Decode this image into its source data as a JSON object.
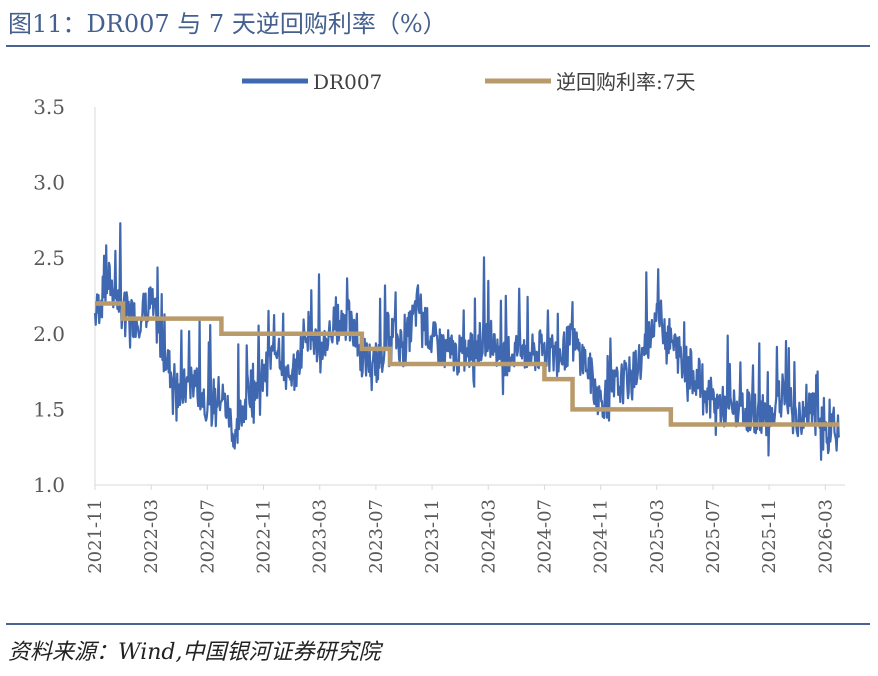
{
  "header": {
    "title": "图11：DR007 与 7 天逆回购利率（%）"
  },
  "footer": {
    "source": "资料来源：Wind,中国银河证券研究院"
  },
  "chart_data": {
    "type": "line",
    "ylim": [
      1.0,
      3.5
    ],
    "yticks": [
      "1.0",
      "1.5",
      "2.0",
      "2.5",
      "3.0",
      "3.5"
    ],
    "xticks": [
      "2021-11",
      "2022-03",
      "2022-07",
      "2022-11",
      "2023-03",
      "2023-07",
      "2023-11",
      "2024-03",
      "2024-07",
      "2024-11",
      "2025-03",
      "2025-07",
      "2025-11",
      "2026-03"
    ],
    "legend_position": "top",
    "grid": false,
    "series": [
      {
        "name": "DR007",
        "color": "#4068b0",
        "x": [
          "2021-11",
          "2021-12",
          "2022-01",
          "2022-02",
          "2022-03",
          "2022-04",
          "2022-05",
          "2022-06",
          "2022-07",
          "2022-08",
          "2022-09",
          "2022-10",
          "2022-11",
          "2022-12",
          "2023-01",
          "2023-02",
          "2023-03",
          "2023-04",
          "2023-05",
          "2023-06",
          "2023-07",
          "2023-08",
          "2023-09",
          "2023-10",
          "2023-11",
          "2023-12",
          "2024-01",
          "2024-02",
          "2024-03",
          "2024-04",
          "2024-05",
          "2024-06",
          "2024-07",
          "2024-08",
          "2024-09",
          "2024-10",
          "2024-11",
          "2024-12",
          "2025-01",
          "2025-02",
          "2025-03",
          "2025-04",
          "2025-05",
          "2025-06",
          "2025-07",
          "2025-08",
          "2025-09",
          "2025-10",
          "2025-11",
          "2025-12",
          "2026-01",
          "2026-02",
          "2026-03",
          "2026-04"
        ],
        "y": [
          2.12,
          2.35,
          2.15,
          2.1,
          2.2,
          1.85,
          1.6,
          1.7,
          1.55,
          1.6,
          1.35,
          1.65,
          1.7,
          1.95,
          1.6,
          2.05,
          1.9,
          2.05,
          2.1,
          1.85,
          1.8,
          2.05,
          1.9,
          2.2,
          1.95,
          1.9,
          1.85,
          1.9,
          2.0,
          1.85,
          1.9,
          1.85,
          1.9,
          1.85,
          1.95,
          1.8,
          1.55,
          1.65,
          1.7,
          1.85,
          2.15,
          1.95,
          1.8,
          1.7,
          1.55,
          1.5,
          1.5,
          1.48,
          1.45,
          1.6,
          1.42,
          1.5,
          1.35,
          1.33
        ]
      },
      {
        "name": "逆回购利率:7天",
        "color": "#b99a6a",
        "x": [
          "2021-11",
          "2022-01",
          "2022-08",
          "2023-06",
          "2023-08",
          "2024-07",
          "2024-09",
          "2025-04",
          "2026-04"
        ],
        "y": [
          2.2,
          2.1,
          2.0,
          1.9,
          1.8,
          1.7,
          1.5,
          1.4,
          1.4
        ]
      }
    ]
  }
}
